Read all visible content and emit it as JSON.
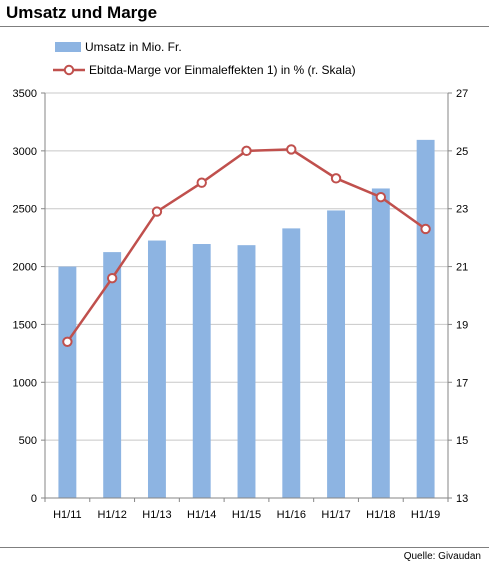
{
  "page": {
    "title": "Umsatz und Marge",
    "source": "Quelle: Givaudan"
  },
  "colors": {
    "bar": "#8db4e2",
    "line": "#c0504d",
    "grid": "#c8c8c8",
    "axis": "#868686"
  },
  "chart_data": {
    "type": "bar",
    "title": "Umsatz und Marge",
    "categories": [
      "H1/11",
      "H1/12",
      "H1/13",
      "H1/14",
      "H1/15",
      "H1/16",
      "H1/17",
      "H1/18",
      "H1/19"
    ],
    "series": [
      {
        "name": "Umsatz in Mio. Fr.",
        "type": "bar",
        "axis": "left",
        "values": [
          2000,
          2125,
          2225,
          2195,
          2185,
          2330,
          2485,
          2675,
          3095
        ]
      },
      {
        "name": "Ebitda-Marge vor Einmaleffekten 1)  in % (r. Skala)",
        "type": "line",
        "axis": "right",
        "values": [
          18.4,
          20.6,
          22.9,
          23.9,
          25.0,
          25.05,
          24.05,
          23.4,
          22.3
        ]
      }
    ],
    "ylim": [
      0,
      3500
    ],
    "y_ticks": [
      "0",
      "500",
      "1000",
      "1500",
      "2000",
      "2500",
      "3000",
      "3500"
    ],
    "y2lim": [
      13,
      27
    ],
    "y2_ticks": [
      "13",
      "15",
      "17",
      "19",
      "21",
      "23",
      "25",
      "27"
    ],
    "grid": true,
    "legend": "top-left"
  }
}
